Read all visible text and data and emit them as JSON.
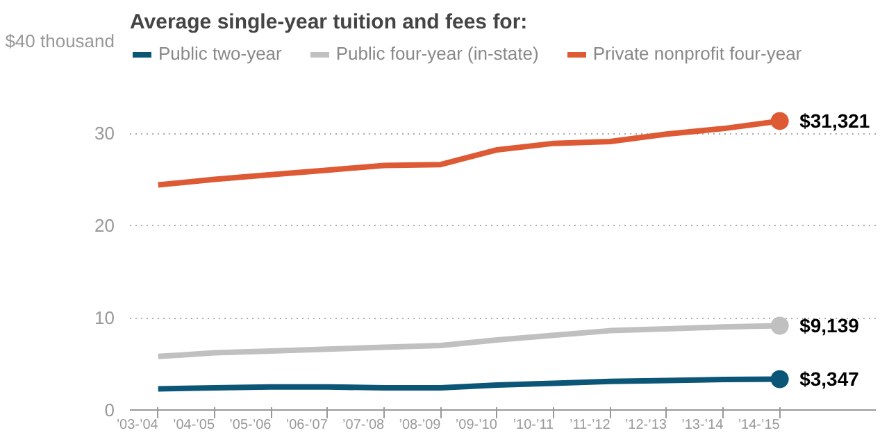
{
  "chart_data": {
    "type": "line",
    "title": "Average single-year tuition and fees for:",
    "categories": [
      "’03-’04",
      "’04-’05",
      "’05-’06",
      "’06-’07",
      "’07-’08",
      "’08-’09",
      "’09-’10",
      "’10-’11",
      "’11-’12",
      "’12-’13",
      "’13-’14",
      "’14-’15"
    ],
    "series": [
      {
        "name": "Public two-year",
        "color": "#0b5577",
        "values": [
          2.3,
          2.4,
          2.5,
          2.5,
          2.4,
          2.4,
          2.7,
          2.9,
          3.1,
          3.2,
          3.3,
          3.347
        ]
      },
      {
        "name": "Public four-year (in-state)",
        "color": "#c0c0c0",
        "values": [
          5.8,
          6.2,
          6.4,
          6.6,
          6.8,
          7.0,
          7.6,
          8.1,
          8.6,
          8.8,
          9.0,
          9.139
        ]
      },
      {
        "name": "Private nonprofit four-year",
        "color": "#dd5a34",
        "values": [
          24.4,
          25.0,
          25.5,
          26.0,
          26.5,
          26.6,
          28.2,
          28.9,
          29.1,
          29.9,
          30.5,
          31.321
        ]
      }
    ],
    "annotations": [
      {
        "text": "$3,347",
        "x": "’14-’15",
        "y": 3.347
      },
      {
        "text": "$9,139",
        "x": "’14-’15",
        "y": 9.139
      },
      {
        "text": "$31,321",
        "x": "’14-’15",
        "y": 31.321
      }
    ],
    "ylim": [
      0,
      40
    ],
    "yticks": [
      0,
      10,
      20,
      30,
      {
        "value": 40,
        "label": "$40 thousand"
      }
    ],
    "grid": "y",
    "legend": "top left"
  }
}
